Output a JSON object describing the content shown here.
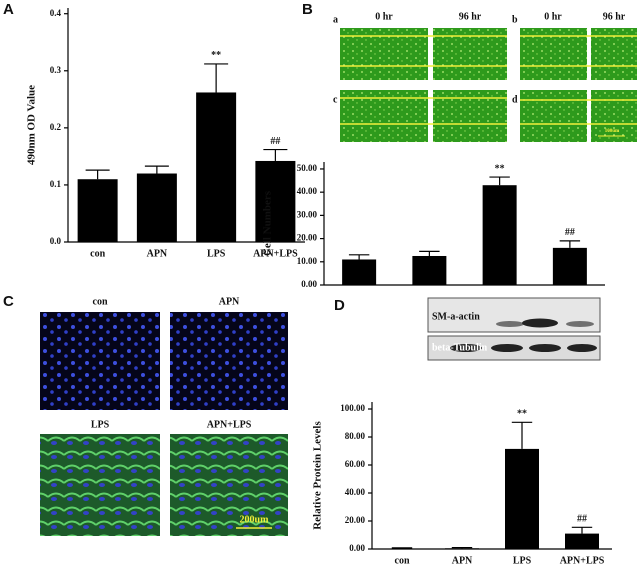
{
  "panel_letters": [
    "A",
    "B",
    "C",
    "D"
  ],
  "micrographs_b": {
    "labels": [
      "a",
      "b",
      "c",
      "d"
    ],
    "time_labels": [
      "0 hr",
      "96 hr",
      "0 hr",
      "96 hr"
    ],
    "scale": "100um"
  },
  "micrographs_c": {
    "labels": [
      "con",
      "APN",
      "LPS",
      "APN+LPS"
    ],
    "scale": "200um"
  },
  "blot": {
    "labels": [
      "SM-a-actin",
      "beta-Tubulin"
    ]
  },
  "chart_data": [
    {
      "type": "bar",
      "y_label": "490nm OD Value",
      "categories": [
        "con",
        "APN",
        "LPS",
        "APN+LPS"
      ],
      "values": [
        0.11,
        0.12,
        0.262,
        0.142
      ],
      "errors": [
        0.016,
        0.013,
        0.05,
        0.02
      ],
      "color": "#000000",
      "ylim": [
        0,
        0.41
      ],
      "yticks": [
        {
          "value": 0,
          "label": "0.0"
        },
        0.1,
        0.2,
        0.3,
        0.4
      ],
      "annotations": [
        {
          "index": 2,
          "text": "**"
        },
        {
          "index": 3,
          "text": "##"
        }
      ]
    },
    {
      "type": "bar",
      "y_label": "Cell Numbers",
      "categories": [
        null,
        null,
        null,
        null
      ],
      "values": [
        11,
        12.5,
        43,
        16
      ],
      "errors": [
        2,
        2,
        3.5,
        3
      ],
      "color": "#000000",
      "ylim": [
        0,
        53
      ],
      "yticks": [
        {
          "value": 0,
          "label": "0.00"
        },
        {
          "value": 10,
          "label": "10.00"
        },
        {
          "value": 20,
          "label": "20.00"
        },
        {
          "value": 30,
          "label": "30.00"
        },
        {
          "value": 40,
          "label": "40.00"
        },
        {
          "value": 50,
          "label": "50.00"
        }
      ],
      "annotations": [
        {
          "index": 2,
          "text": "**"
        },
        {
          "index": 3,
          "text": "##"
        }
      ]
    },
    {
      "type": "bar",
      "y_label": "Relative Protein Levels",
      "categories": [
        "con",
        "APN",
        "LPS",
        "APN+LPS"
      ],
      "values": [
        0.3,
        0.5,
        71.5,
        11
      ],
      "errors": [
        0.5,
        0.5,
        19,
        4.5
      ],
      "color": "#000000",
      "ylim": [
        0,
        105
      ],
      "yticks": [
        {
          "value": 0,
          "label": "0.00"
        },
        {
          "value": 20,
          "label": "20.00"
        },
        {
          "value": 40,
          "label": "40.00"
        },
        {
          "value": 60,
          "label": "60.00"
        },
        {
          "value": 80,
          "label": "80.00"
        },
        {
          "value": 100,
          "label": "100.00"
        }
      ],
      "annotations": [
        {
          "index": 2,
          "text": "**"
        },
        {
          "index": 3,
          "text": "##"
        }
      ]
    }
  ]
}
